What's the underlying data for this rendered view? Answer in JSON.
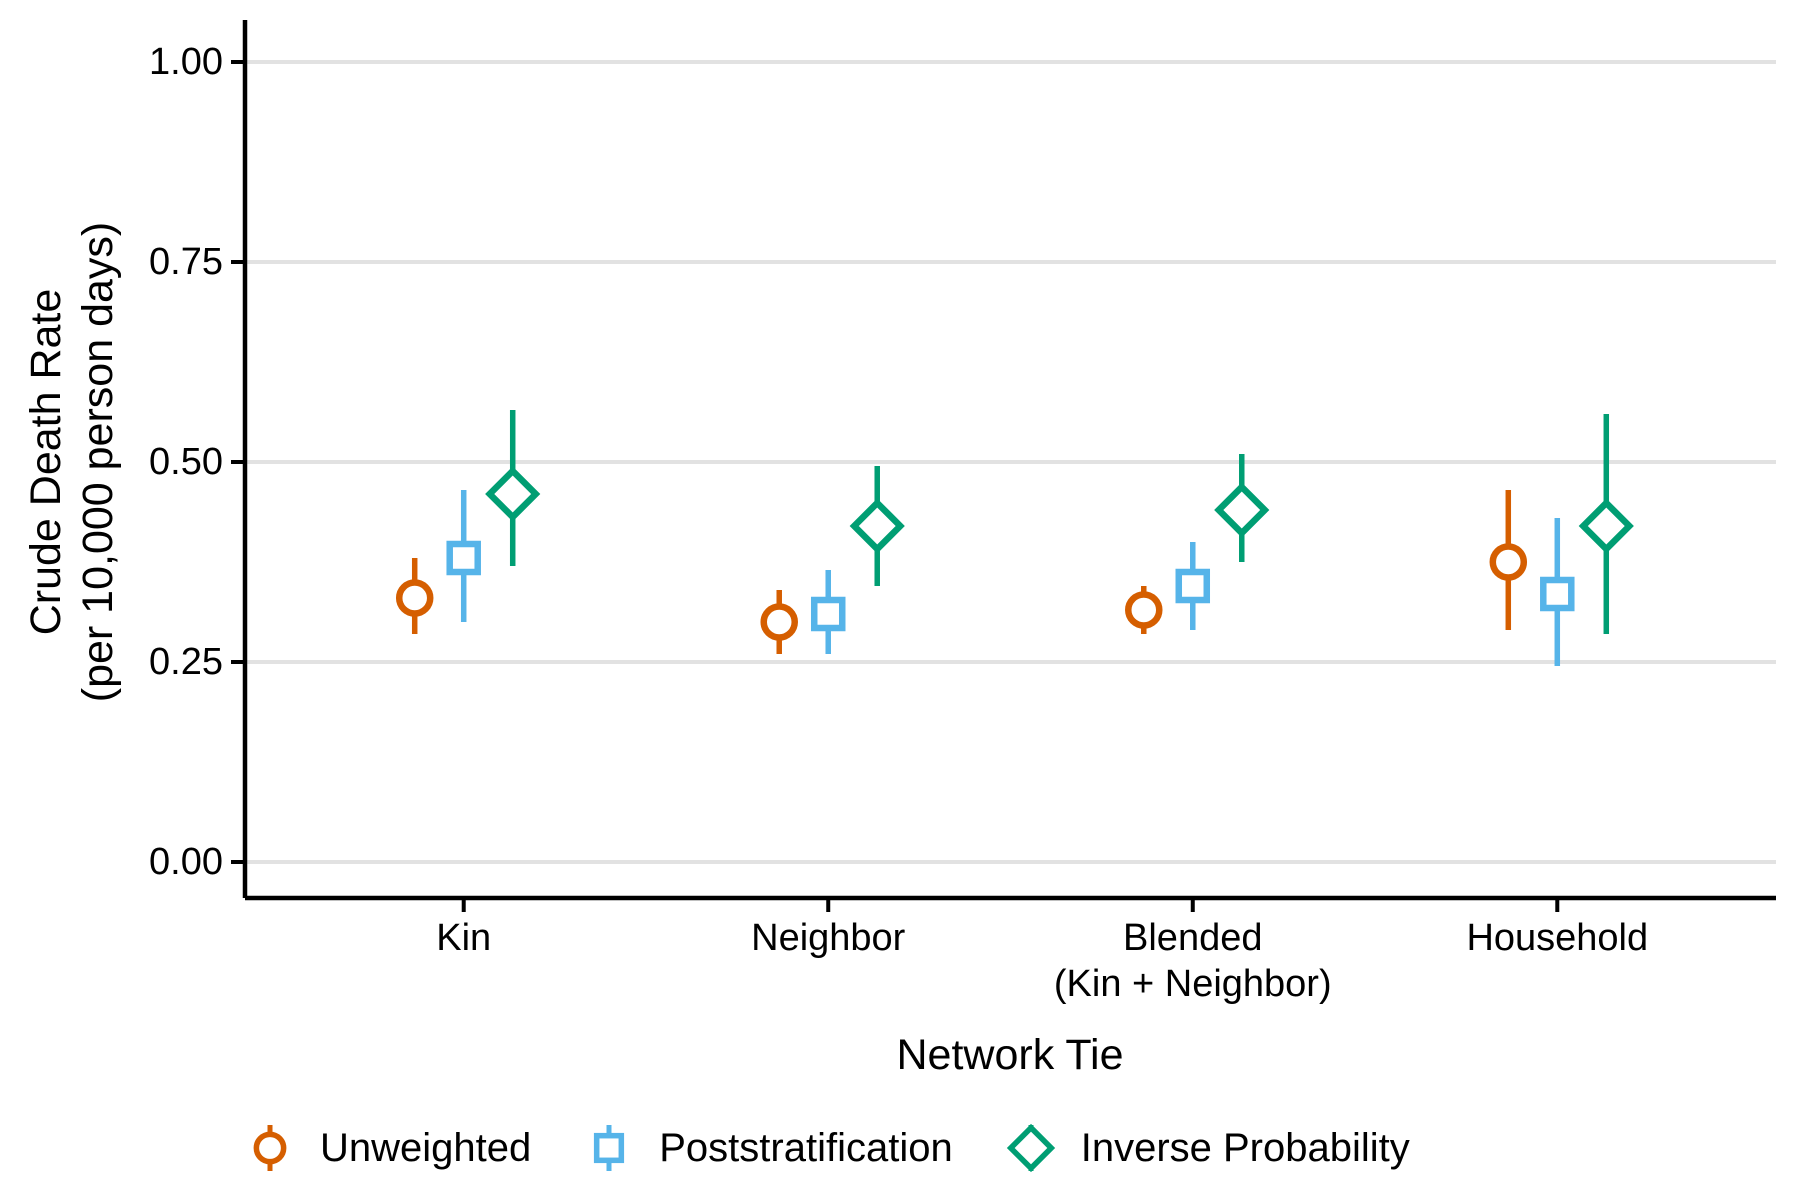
{
  "figure": {
    "background_color": "#FFFFFF",
    "gridline_color": "#E2E2E2",
    "axis_color": "#000000"
  },
  "chart_data": {
    "type": "scatter",
    "subtype": "pointrange-dodged",
    "title": "",
    "xlabel": "Network Tie",
    "ylabel": "Crude Death Rate (per 10,000 person days)",
    "ylabel_lines": [
      "Crude Death Rate",
      "(per 10,000 person days)"
    ],
    "categories": [
      "Kin",
      "Neighbor",
      "Blended (Kin + Neighbor)",
      "Household"
    ],
    "category_label_lines": [
      [
        "Kin"
      ],
      [
        "Neighbor"
      ],
      [
        "Blended",
        "(Kin + Neighbor)"
      ],
      [
        "Household"
      ]
    ],
    "ylim": [
      0,
      1
    ],
    "y_ticks": [
      0.0,
      0.25,
      0.5,
      0.75,
      1.0
    ],
    "y_tick_labels": [
      "0.00",
      "0.25",
      "0.50",
      "0.75",
      "1.00"
    ],
    "grid": "horizontal",
    "legend_position": "bottom",
    "series": [
      {
        "name": "Unweighted",
        "shape": "circle",
        "color": "#D55E00",
        "values": [
          0.33,
          0.3,
          0.315,
          0.375
        ],
        "ci_low": [
          0.285,
          0.26,
          0.285,
          0.29
        ],
        "ci_high": [
          0.38,
          0.34,
          0.345,
          0.465
        ]
      },
      {
        "name": "Poststratification",
        "shape": "square",
        "color": "#56B4E9",
        "values": [
          0.38,
          0.31,
          0.345,
          0.335
        ],
        "ci_low": [
          0.3,
          0.26,
          0.29,
          0.245
        ],
        "ci_high": [
          0.465,
          0.365,
          0.4,
          0.43
        ]
      },
      {
        "name": "Inverse Probability",
        "shape": "diamond",
        "color": "#009E73",
        "values": [
          0.46,
          0.42,
          0.44,
          0.42
        ],
        "ci_low": [
          0.37,
          0.345,
          0.375,
          0.285
        ],
        "ci_high": [
          0.565,
          0.495,
          0.51,
          0.56
        ]
      }
    ]
  }
}
